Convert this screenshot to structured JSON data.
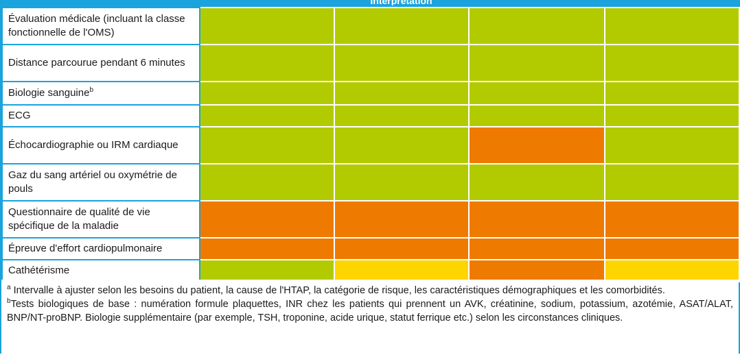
{
  "header": {
    "partial_label": "Interprétation"
  },
  "rows": [
    {
      "label": "Évaluation médicale (incluant la classe fonctionnelle de l'OMS)",
      "sup": "",
      "cells": [
        "green",
        "green",
        "green",
        "green"
      ]
    },
    {
      "label": "Distance parcourue pendant 6 minutes",
      "sup": "",
      "cells": [
        "green",
        "green",
        "green",
        "green"
      ]
    },
    {
      "label": "Biologie sanguine",
      "sup": "b",
      "cells": [
        "green",
        "green",
        "green",
        "green"
      ]
    },
    {
      "label": "ECG",
      "sup": "",
      "cells": [
        "green",
        "green",
        "green",
        "green"
      ]
    },
    {
      "label": "Échocardiographie ou IRM cardiaque",
      "sup": "",
      "cells": [
        "green",
        "green",
        "orange",
        "green"
      ]
    },
    {
      "label": "Gaz du sang artériel ou oxymétrie de pouls",
      "sup": "",
      "cells": [
        "green",
        "green",
        "green",
        "green"
      ]
    },
    {
      "label": "Questionnaire de qualité de vie spécifique de la maladie",
      "sup": "",
      "cells": [
        "orange",
        "orange",
        "orange",
        "orange"
      ]
    },
    {
      "label": "Épreuve d'effort cardiopulmonaire",
      "sup": "",
      "cells": [
        "orange",
        "orange",
        "orange",
        "orange"
      ]
    },
    {
      "label": "Cathétérisme",
      "sup": "",
      "cells": [
        "green",
        "yellow",
        "orange",
        "yellow"
      ]
    }
  ],
  "colors": {
    "green": "#b2cb00",
    "orange": "#ef7a00",
    "yellow": "#ffd500",
    "border": "#1aa3dd"
  },
  "footnotes": {
    "a": {
      "marker": "a",
      "text": "Intervalle à ajuster selon les besoins du patient, la cause de l'HTAP, la catégorie de risque, les caractéristiques démographiques et les comorbidités."
    },
    "b": {
      "marker": "b",
      "text": "Tests biologiques de base : numération formule plaquettes, INR chez les patients qui prennent un AVK, créatinine, sodium, potassium, azotémie, ASAT/ALAT, BNP/NT-proBNP. Biologie supplémentaire (par exemple, TSH, troponine, acide urique, statut ferrique etc.) selon les circonstances cliniques."
    }
  }
}
